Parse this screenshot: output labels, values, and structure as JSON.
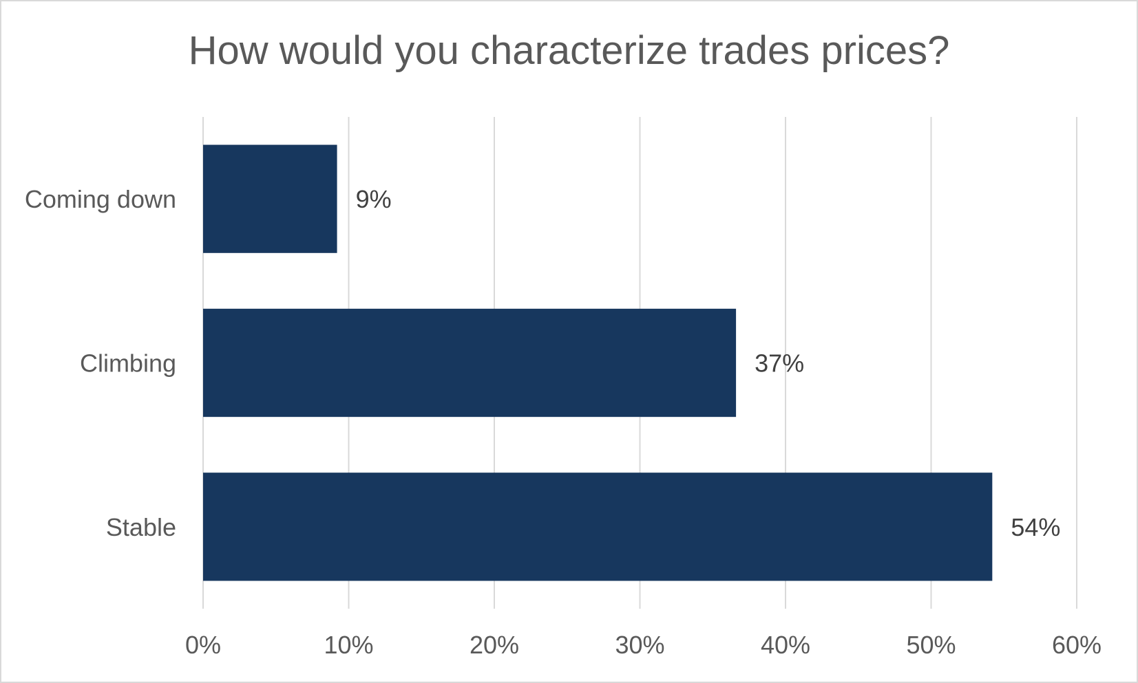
{
  "chart_data": {
    "type": "bar",
    "orientation": "horizontal",
    "title": "How would you characterize trades prices?",
    "categories": [
      "Coming down",
      "Climbing",
      "Stable"
    ],
    "values": [
      9.2,
      36.6,
      54.2
    ],
    "data_labels": [
      "9%",
      "37%",
      "54%"
    ],
    "xlabel": "",
    "ylabel": "",
    "xlim": [
      0,
      60
    ],
    "x_ticks": [
      0,
      10,
      20,
      30,
      40,
      50,
      60
    ],
    "x_tick_labels": [
      "0%",
      "10%",
      "20%",
      "30%",
      "40%",
      "50%",
      "60%"
    ],
    "grid": "vertical",
    "legend": "none",
    "bar_color": "#17375e",
    "grid_color": "#d9d9d9"
  }
}
